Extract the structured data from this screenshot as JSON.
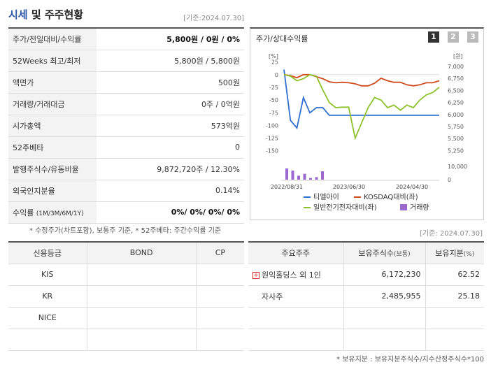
{
  "header": {
    "title_a": "시세",
    "title_b": " 및 주주현황",
    "base_date": "[기준:2024.07.30]"
  },
  "market": [
    {
      "label": "주가/전일대비/수익률",
      "value": "5,800원 / 0원 / 0%",
      "bold": true
    },
    {
      "label": "52Weeks 최고/최저",
      "value": "5,800원 / 5,800원"
    },
    {
      "label": "액면가",
      "value": "500원"
    },
    {
      "label": "거래량/거래대금",
      "value": "0주 / 0억원"
    },
    {
      "label": "시가총액",
      "value": "573억원"
    },
    {
      "label": "52주베타",
      "value": "0"
    },
    {
      "label": "발행주식수/유동비율",
      "value": "9,872,720주 / 12.30%"
    },
    {
      "label": "외국인지분율",
      "value": "0.14%"
    },
    {
      "label": "수익률",
      "label_small": "(1M/3M/6M/1Y)",
      "value": "0%/ 0%/ 0%/ 0%",
      "bold": true
    }
  ],
  "market_note": "* 수정주가(차트포함), 보통주 기준, * 52주베타: 주간수익률 기준",
  "chart_panel": {
    "title": "주가/상대수익률",
    "pages": [
      "1",
      "2",
      "3"
    ],
    "active_page": "1"
  },
  "chart_data": {
    "type": "line",
    "left_axis_unit": "[%]",
    "right_axis_unit": "[원]",
    "left_ticks": [
      25,
      0,
      -25,
      -50,
      -75,
      -100,
      -125,
      -150
    ],
    "right_ticks": [
      "7,000",
      "6,750",
      "6,500",
      "6,250",
      "6,000",
      "5,750",
      "5,500",
      "5,250"
    ],
    "volume_ticks": [
      "10,000",
      "0"
    ],
    "x_labels": [
      "2022/08/31",
      "2023/06/30",
      "2024/04/30"
    ],
    "ylim_left": [
      -160,
      30
    ],
    "series": [
      {
        "name": "티엘아이",
        "color": "#2f6fd0",
        "values": [
          10,
          -90,
          -105,
          -45,
          -75,
          -65,
          -65,
          -80,
          -80,
          -80,
          -80,
          -80,
          -80,
          -80,
          -80,
          -80,
          -80,
          -80,
          -80,
          -80,
          -80,
          -80,
          -80,
          -80,
          -80
        ]
      },
      {
        "name": "KOSDAQ대비(좌)",
        "color": "#d04a1c",
        "values": [
          0,
          -2,
          -6,
          0,
          0,
          -4,
          -8,
          -14,
          -16,
          -15,
          -16,
          -18,
          -22,
          -22,
          -17,
          -7,
          -12,
          -15,
          -15,
          -20,
          -22,
          -20,
          -16,
          -16,
          -12
        ]
      },
      {
        "name": "일반전기전자대비(좌)",
        "color": "#8dc22a",
        "values": [
          0,
          -3,
          -12,
          -8,
          0,
          -3,
          -30,
          -55,
          -65,
          -64,
          -64,
          -125,
          -95,
          -65,
          -45,
          -50,
          -65,
          -60,
          -70,
          -60,
          -65,
          -50,
          -40,
          -35,
          -25
        ]
      }
    ],
    "volume": {
      "name": "거래량",
      "color": "#9a68cf",
      "values": [
        8000,
        6500,
        2800,
        4200,
        1200,
        1800,
        6000
      ]
    }
  },
  "credit": {
    "headers": [
      "신용등급",
      "BOND",
      "CP"
    ],
    "rows": [
      [
        "KIS",
        "",
        ""
      ],
      [
        "KR",
        "",
        ""
      ],
      [
        "NICE",
        "",
        ""
      ],
      [
        "",
        "",
        ""
      ]
    ]
  },
  "holders_base_date": "[기준: 2024.07.30]",
  "holders": {
    "headers": [
      "주요주주",
      "보유주식수",
      "보유지분"
    ],
    "header_units": [
      "",
      "(보통)",
      "(%)"
    ],
    "rows": [
      {
        "name": "원익홀딩스 외 1인",
        "shares": "6,172,230",
        "pct": "62.52",
        "icon": "plus-icon"
      },
      {
        "name": "자사주",
        "shares": "2,485,955",
        "pct": "25.18"
      },
      {
        "name": "",
        "shares": "",
        "pct": ""
      },
      {
        "name": "",
        "shares": "",
        "pct": ""
      }
    ]
  },
  "holders_note": "* 보유지분 : 보유지분주식수/지수산정주식수*100",
  "colors": {
    "accent": "#2b5aa8",
    "active_page": "#333333",
    "inactive_page": "#bbbbbb"
  }
}
